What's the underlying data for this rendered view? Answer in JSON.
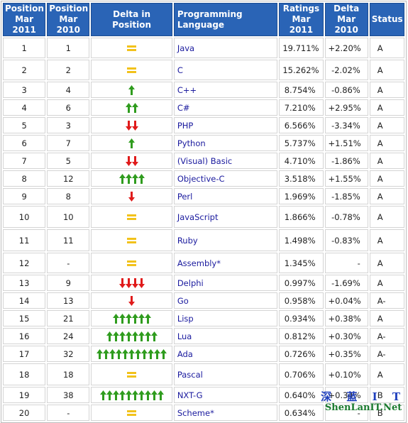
{
  "headers": {
    "pos2011": "Position Mar 2011",
    "pos2010": "Position Mar 2010",
    "delta_pos": "Delta in Position",
    "language": "Programming Language",
    "ratings": "Ratings Mar 2011",
    "delta": "Delta Mar 2010",
    "status": "Status"
  },
  "colors": {
    "header_bg": "#2a64b6",
    "up_arrow": "#2f9c1e",
    "down_arrow": "#e01b1b",
    "equal": "#f2c21b",
    "link": "#1a1a9e"
  },
  "rows": [
    {
      "pos2011": "1",
      "pos2010": "1",
      "trend": "equal",
      "arrows": 0,
      "language": "Java",
      "ratings": "19.711%",
      "delta": "+2.20%",
      "status": "A"
    },
    {
      "pos2011": "2",
      "pos2010": "2",
      "trend": "equal",
      "arrows": 0,
      "language": "C",
      "ratings": "15.262%",
      "delta": "-2.02%",
      "status": "A"
    },
    {
      "pos2011": "3",
      "pos2010": "4",
      "trend": "up",
      "arrows": 1,
      "language": "C++",
      "ratings": "8.754%",
      "delta": "-0.86%",
      "status": "A"
    },
    {
      "pos2011": "4",
      "pos2010": "6",
      "trend": "up",
      "arrows": 2,
      "language": "C#",
      "ratings": "7.210%",
      "delta": "+2.95%",
      "status": "A"
    },
    {
      "pos2011": "5",
      "pos2010": "3",
      "trend": "down",
      "arrows": 2,
      "language": "PHP",
      "ratings": "6.566%",
      "delta": "-3.34%",
      "status": "A"
    },
    {
      "pos2011": "6",
      "pos2010": "7",
      "trend": "up",
      "arrows": 1,
      "language": "Python",
      "ratings": "5.737%",
      "delta": "+1.51%",
      "status": "A"
    },
    {
      "pos2011": "7",
      "pos2010": "5",
      "trend": "down",
      "arrows": 2,
      "language": "(Visual) Basic",
      "ratings": "4.710%",
      "delta": "-1.86%",
      "status": "A"
    },
    {
      "pos2011": "8",
      "pos2010": "12",
      "trend": "up",
      "arrows": 4,
      "language": "Objective-C",
      "ratings": "3.518%",
      "delta": "+1.55%",
      "status": "A"
    },
    {
      "pos2011": "9",
      "pos2010": "8",
      "trend": "down",
      "arrows": 1,
      "language": "Perl",
      "ratings": "1.969%",
      "delta": "-1.85%",
      "status": "A"
    },
    {
      "pos2011": "10",
      "pos2010": "10",
      "trend": "equal",
      "arrows": 0,
      "language": "JavaScript",
      "ratings": "1.866%",
      "delta": "-0.78%",
      "status": "A"
    },
    {
      "pos2011": "11",
      "pos2010": "11",
      "trend": "equal",
      "arrows": 0,
      "language": "Ruby",
      "ratings": "1.498%",
      "delta": "-0.83%",
      "status": "A"
    },
    {
      "pos2011": "12",
      "pos2010": "-",
      "trend": "equal",
      "arrows": 0,
      "language": "Assembly*",
      "ratings": "1.345%",
      "delta": "-",
      "status": "A"
    },
    {
      "pos2011": "13",
      "pos2010": "9",
      "trend": "down",
      "arrows": 4,
      "language": "Delphi",
      "ratings": "0.997%",
      "delta": "-1.69%",
      "status": "A"
    },
    {
      "pos2011": "14",
      "pos2010": "13",
      "trend": "down",
      "arrows": 1,
      "language": "Go",
      "ratings": "0.958%",
      "delta": "+0.04%",
      "status": "A-"
    },
    {
      "pos2011": "15",
      "pos2010": "21",
      "trend": "up",
      "arrows": 6,
      "language": "Lisp",
      "ratings": "0.934%",
      "delta": "+0.38%",
      "status": "A"
    },
    {
      "pos2011": "16",
      "pos2010": "24",
      "trend": "up",
      "arrows": 8,
      "language": "Lua",
      "ratings": "0.812%",
      "delta": "+0.30%",
      "status": "A-"
    },
    {
      "pos2011": "17",
      "pos2010": "32",
      "trend": "up",
      "arrows": 11,
      "language": "Ada",
      "ratings": "0.726%",
      "delta": "+0.35%",
      "status": "A-"
    },
    {
      "pos2011": "18",
      "pos2010": "18",
      "trend": "equal",
      "arrows": 0,
      "language": "Pascal",
      "ratings": "0.706%",
      "delta": "+0.10%",
      "status": "A"
    },
    {
      "pos2011": "19",
      "pos2010": "38",
      "trend": "up",
      "arrows": 10,
      "language": "NXT-G",
      "ratings": "0.640%",
      "delta": "+0.34%",
      "status": "B"
    },
    {
      "pos2011": "20",
      "pos2010": "-",
      "trend": "equal",
      "arrows": 0,
      "language": "Scheme*",
      "ratings": "0.634%",
      "delta": "-",
      "status": "B"
    }
  ],
  "watermark": {
    "line1": "深 蓝 I T",
    "line2": "ShenLanIT.Net"
  }
}
